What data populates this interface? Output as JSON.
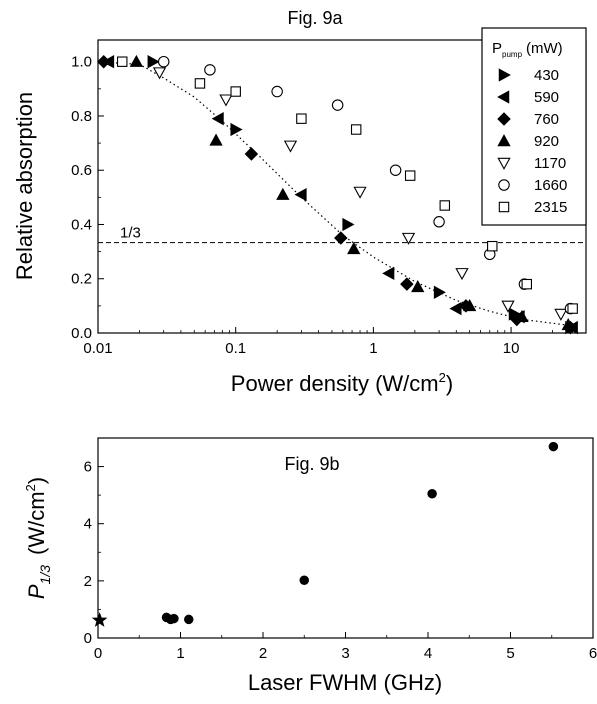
{
  "chart_data": [
    {
      "type": "scatter",
      "title": "Fig. 9a",
      "xlabel": "Power density (W/cm",
      "xlabel_sup": "2",
      "xlabel_close": ")",
      "ylabel": "Relative absorption",
      "x_scale": "log",
      "xlim": [
        0.01,
        35
      ],
      "ylim": [
        0.0,
        1.08
      ],
      "x_ticks": [
        0.01,
        0.1,
        1,
        10
      ],
      "x_tick_labels": [
        "0.01",
        "0.1",
        "1",
        "10"
      ],
      "y_ticks": [
        0.0,
        0.2,
        0.4,
        0.6,
        0.8,
        1.0
      ],
      "y_tick_labels": [
        "0.0",
        "0.2",
        "0.4",
        "0.6",
        "0.8",
        "1.0"
      ],
      "grid": false,
      "legend": {
        "position": "top-right",
        "title_main": "P",
        "title_sub": "pump",
        "title_unit": "(mW)"
      },
      "reference_line": {
        "y": 0.333,
        "label": "1/3",
        "style": "dashed"
      },
      "fit_curve": {
        "style": "dotted",
        "points": [
          [
            0.01,
            1.0
          ],
          [
            0.02,
            0.99
          ],
          [
            0.03,
            0.94
          ],
          [
            0.05,
            0.87
          ],
          [
            0.08,
            0.78
          ],
          [
            0.15,
            0.65
          ],
          [
            0.3,
            0.5
          ],
          [
            0.6,
            0.36
          ],
          [
            1.0,
            0.28
          ],
          [
            2.0,
            0.19
          ],
          [
            4.0,
            0.12
          ],
          [
            7.0,
            0.08
          ],
          [
            12.0,
            0.05
          ],
          [
            25.0,
            0.03
          ]
        ]
      },
      "series": [
        {
          "name": "430",
          "marker": "triangle-right",
          "filled": true,
          "x": [
            0.025,
            0.1,
            0.65,
            3.0,
            10.5,
            27.0
          ],
          "y": [
            1.0,
            0.75,
            0.4,
            0.15,
            0.07,
            0.02
          ]
        },
        {
          "name": "590",
          "marker": "triangle-left",
          "filled": true,
          "x": [
            0.012,
            0.075,
            0.3,
            1.3,
            4.0,
            11.5,
            28.0
          ],
          "y": [
            1.0,
            0.79,
            0.51,
            0.22,
            0.09,
            0.06,
            0.02
          ]
        },
        {
          "name": "760",
          "marker": "diamond",
          "filled": true,
          "x": [
            0.011,
            0.13,
            0.58,
            1.75,
            4.7,
            11.0,
            27.0
          ],
          "y": [
            1.0,
            0.66,
            0.35,
            0.18,
            0.1,
            0.05,
            0.02
          ]
        },
        {
          "name": "920",
          "marker": "triangle-up",
          "filled": true,
          "x": [
            0.019,
            0.072,
            0.22,
            0.72,
            2.1,
            5.0,
            12.0,
            26.0
          ],
          "y": [
            1.0,
            0.71,
            0.51,
            0.31,
            0.17,
            0.1,
            0.06,
            0.03
          ]
        },
        {
          "name": "1170",
          "marker": "triangle-down",
          "filled": false,
          "x": [
            0.028,
            0.085,
            0.25,
            0.8,
            1.8,
            4.4,
            9.5,
            23.0
          ],
          "y": [
            0.96,
            0.86,
            0.69,
            0.52,
            0.35,
            0.22,
            0.1,
            0.07
          ]
        },
        {
          "name": "1660",
          "marker": "circle",
          "filled": false,
          "x": [
            0.03,
            0.065,
            0.2,
            0.55,
            1.45,
            3.0,
            7.0,
            12.5,
            27.0
          ],
          "y": [
            1.0,
            0.97,
            0.89,
            0.84,
            0.6,
            0.41,
            0.29,
            0.18,
            0.09
          ]
        },
        {
          "name": "2315",
          "marker": "square",
          "filled": false,
          "x": [
            0.015,
            0.055,
            0.1,
            0.3,
            0.75,
            1.85,
            3.3,
            7.3,
            13.0,
            28.0
          ],
          "y": [
            1.0,
            0.92,
            0.89,
            0.79,
            0.75,
            0.58,
            0.47,
            0.32,
            0.18,
            0.09
          ]
        }
      ]
    },
    {
      "type": "scatter",
      "title": "Fig. 9b",
      "xlabel": "Laser FWHM (GHz)",
      "ylabel_main": "P",
      "ylabel_sub": "1/3",
      "ylabel_unit": "(W/cm",
      "ylabel_sup": "2",
      "ylabel_close": ")",
      "xlim": [
        0,
        6
      ],
      "ylim": [
        0,
        7
      ],
      "x_ticks": [
        0,
        1,
        2,
        3,
        4,
        5,
        6
      ],
      "x_tick_labels": [
        "0",
        "1",
        "2",
        "3",
        "4",
        "5",
        "6"
      ],
      "y_ticks": [
        0,
        2,
        4,
        6
      ],
      "y_tick_labels": [
        "0",
        "2",
        "4",
        "6"
      ],
      "grid": false,
      "series": [
        {
          "marker": "circle",
          "filled": true,
          "x": [
            0.83,
            0.88,
            0.92,
            1.1,
            2.5,
            4.05,
            5.52
          ],
          "y": [
            0.72,
            0.65,
            0.68,
            0.65,
            2.02,
            5.05,
            6.7
          ],
          "yerr": [
            0.05,
            0.05,
            0.05,
            0.05,
            0.1,
            0.15,
            0.15
          ]
        },
        {
          "marker": "star",
          "filled": true,
          "x": [
            0.02
          ],
          "y": [
            0.62
          ]
        }
      ]
    }
  ]
}
